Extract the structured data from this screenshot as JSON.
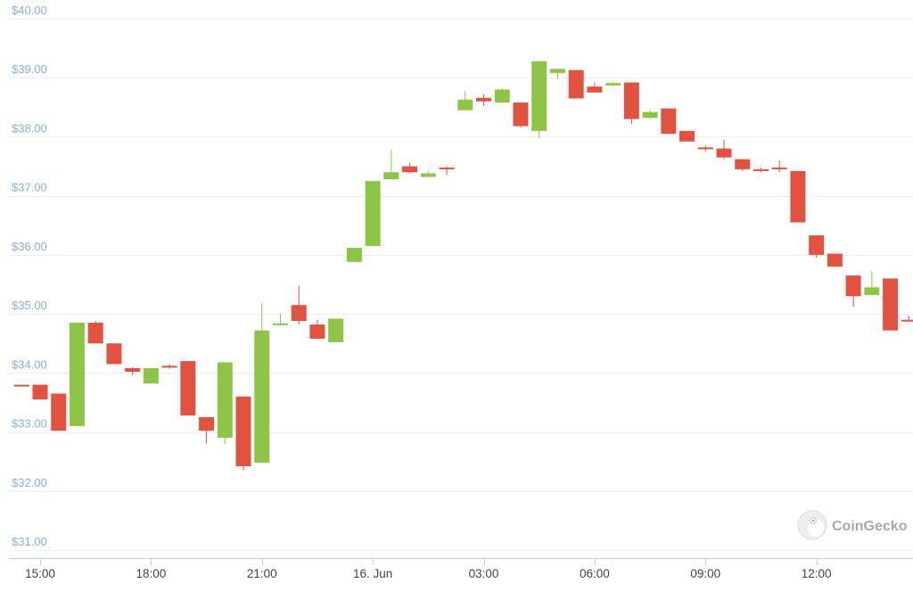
{
  "watermark": {
    "brand": "CoinGecko",
    "icon": "gecko-logo-icon"
  },
  "colors": {
    "up": "#8dc647",
    "down": "#e15241",
    "grid": "#eeeeee",
    "axis_label": "#8ab0d9"
  },
  "chart_data": {
    "type": "candlestick",
    "ylim": [
      31,
      40
    ],
    "y_ticks": [
      31,
      32,
      33,
      34,
      35,
      36,
      37,
      38,
      39,
      40
    ],
    "y_tick_labels": [
      "$31.00",
      "$32.00",
      "$33.00",
      "$34.00",
      "$35.00",
      "$36.00",
      "$37.00",
      "$38.00",
      "$39.00",
      "$40.00"
    ],
    "x_tick_labels": [
      {
        "t": 0,
        "label": "15:00"
      },
      {
        "t": 6,
        "label": "18:00"
      },
      {
        "t": 12,
        "label": "21:00"
      },
      {
        "t": 18,
        "label": "16. Jun"
      },
      {
        "t": 24,
        "label": "03:00"
      },
      {
        "t": 30,
        "label": "06:00"
      },
      {
        "t": 36,
        "label": "09:00"
      },
      {
        "t": 42,
        "label": "12:00"
      }
    ],
    "grid": true,
    "candles": [
      {
        "t": -1,
        "o": 33.8,
        "h": 33.8,
        "l": 33.77,
        "c": 33.79
      },
      {
        "t": 0,
        "o": 33.8,
        "h": 33.8,
        "l": 33.55,
        "c": 33.55
      },
      {
        "t": 1,
        "o": 33.65,
        "h": 33.65,
        "l": 33.02,
        "c": 33.02
      },
      {
        "t": 2,
        "o": 33.1,
        "h": 34.85,
        "l": 33.1,
        "c": 34.85
      },
      {
        "t": 3,
        "o": 34.85,
        "h": 34.88,
        "l": 34.5,
        "c": 34.5
      },
      {
        "t": 4,
        "o": 34.5,
        "h": 34.5,
        "l": 34.15,
        "c": 34.15
      },
      {
        "t": 5,
        "o": 34.08,
        "h": 34.1,
        "l": 33.96,
        "c": 34.02
      },
      {
        "t": 6,
        "o": 33.82,
        "h": 34.08,
        "l": 33.82,
        "c": 34.08
      },
      {
        "t": 7,
        "o": 34.12,
        "h": 34.15,
        "l": 34.07,
        "c": 34.1
      },
      {
        "t": 8,
        "o": 34.2,
        "h": 34.2,
        "l": 33.28,
        "c": 33.28
      },
      {
        "t": 9,
        "o": 33.25,
        "h": 33.25,
        "l": 32.8,
        "c": 33.02
      },
      {
        "t": 10,
        "o": 32.9,
        "h": 34.18,
        "l": 32.8,
        "c": 34.18
      },
      {
        "t": 11,
        "o": 33.6,
        "h": 33.6,
        "l": 32.35,
        "c": 32.42
      },
      {
        "t": 12,
        "o": 32.48,
        "h": 35.18,
        "l": 32.48,
        "c": 34.72
      },
      {
        "t": 13,
        "o": 34.82,
        "h": 35.0,
        "l": 34.8,
        "c": 34.84
      },
      {
        "t": 14,
        "o": 35.15,
        "h": 35.48,
        "l": 34.82,
        "c": 34.88
      },
      {
        "t": 15,
        "o": 34.82,
        "h": 34.9,
        "l": 34.58,
        "c": 34.58
      },
      {
        "t": 16,
        "o": 34.52,
        "h": 34.92,
        "l": 34.52,
        "c": 34.92
      },
      {
        "t": 17,
        "o": 35.88,
        "h": 36.12,
        "l": 35.88,
        "c": 36.12
      },
      {
        "t": 18,
        "o": 36.15,
        "h": 37.25,
        "l": 36.15,
        "c": 37.25
      },
      {
        "t": 19,
        "o": 37.28,
        "h": 37.78,
        "l": 37.28,
        "c": 37.4
      },
      {
        "t": 20,
        "o": 37.5,
        "h": 37.55,
        "l": 37.38,
        "c": 37.4
      },
      {
        "t": 21,
        "o": 37.32,
        "h": 37.42,
        "l": 37.32,
        "c": 37.38
      },
      {
        "t": 22,
        "o": 37.48,
        "h": 37.5,
        "l": 37.35,
        "c": 37.45
      },
      {
        "t": 23,
        "o": 38.45,
        "h": 38.78,
        "l": 38.45,
        "c": 38.63
      },
      {
        "t": 24,
        "o": 38.66,
        "h": 38.72,
        "l": 38.52,
        "c": 38.6
      },
      {
        "t": 25,
        "o": 38.58,
        "h": 38.82,
        "l": 38.58,
        "c": 38.8
      },
      {
        "t": 26,
        "o": 38.58,
        "h": 38.58,
        "l": 38.15,
        "c": 38.18
      },
      {
        "t": 27,
        "o": 38.1,
        "h": 39.28,
        "l": 37.98,
        "c": 39.28
      },
      {
        "t": 28,
        "o": 39.08,
        "h": 39.15,
        "l": 38.98,
        "c": 39.15
      },
      {
        "t": 29,
        "o": 39.13,
        "h": 39.13,
        "l": 38.65,
        "c": 38.65
      },
      {
        "t": 30,
        "o": 38.85,
        "h": 38.92,
        "l": 38.75,
        "c": 38.75
      },
      {
        "t": 31,
        "o": 38.87,
        "h": 38.93,
        "l": 38.87,
        "c": 38.91
      },
      {
        "t": 32,
        "o": 38.92,
        "h": 38.92,
        "l": 38.22,
        "c": 38.3
      },
      {
        "t": 33,
        "o": 38.32,
        "h": 38.45,
        "l": 38.3,
        "c": 38.42
      },
      {
        "t": 34,
        "o": 38.48,
        "h": 38.48,
        "l": 38.05,
        "c": 38.05
      },
      {
        "t": 35,
        "o": 38.1,
        "h": 38.1,
        "l": 37.92,
        "c": 37.92
      },
      {
        "t": 36,
        "o": 37.82,
        "h": 37.85,
        "l": 37.75,
        "c": 37.8
      },
      {
        "t": 37,
        "o": 37.8,
        "h": 37.95,
        "l": 37.62,
        "c": 37.65
      },
      {
        "t": 38,
        "o": 37.62,
        "h": 37.62,
        "l": 37.42,
        "c": 37.45
      },
      {
        "t": 39,
        "o": 37.45,
        "h": 37.48,
        "l": 37.4,
        "c": 37.42
      },
      {
        "t": 40,
        "o": 37.48,
        "h": 37.6,
        "l": 37.4,
        "c": 37.45
      },
      {
        "t": 41,
        "o": 37.42,
        "h": 37.42,
        "l": 36.55,
        "c": 36.55
      },
      {
        "t": 42,
        "o": 36.33,
        "h": 36.33,
        "l": 35.95,
        "c": 36.0
      },
      {
        "t": 43,
        "o": 36.02,
        "h": 36.02,
        "l": 35.8,
        "c": 35.8
      },
      {
        "t": 44,
        "o": 35.65,
        "h": 35.65,
        "l": 35.12,
        "c": 35.3
      },
      {
        "t": 45,
        "o": 35.32,
        "h": 35.72,
        "l": 35.32,
        "c": 35.45
      },
      {
        "t": 46,
        "o": 35.6,
        "h": 35.6,
        "l": 34.72,
        "c": 34.72
      },
      {
        "t": 47,
        "o": 34.9,
        "h": 34.97,
        "l": 34.87,
        "c": 34.88
      }
    ]
  }
}
